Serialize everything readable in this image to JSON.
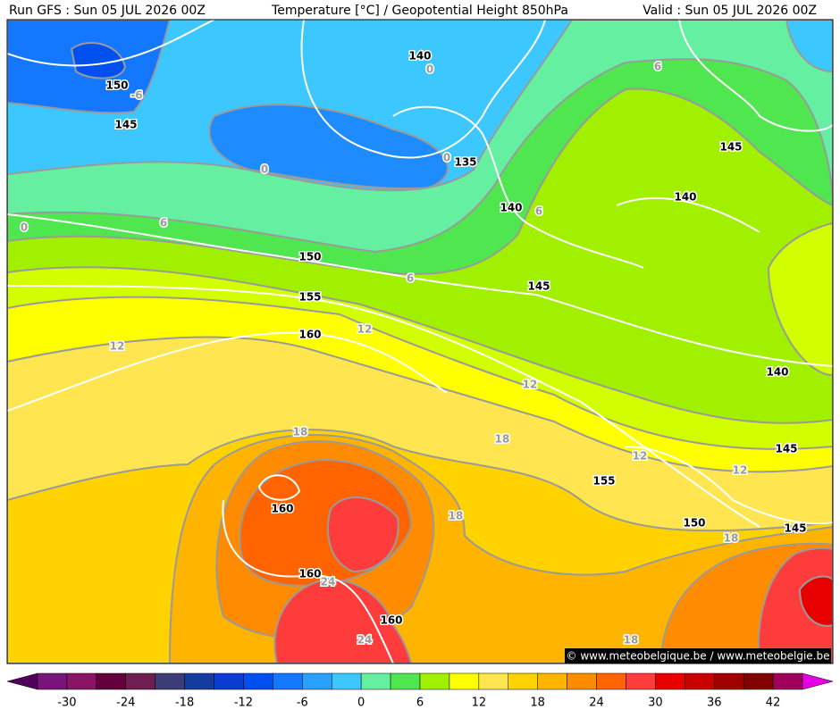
{
  "header": {
    "run": "Run GFS : Sun 05 JUL 2026 00Z",
    "title": "Temperature [°C] / Geopotential Height 850hPa",
    "valid": "Valid : Sun 05 JUL 2026 00Z"
  },
  "map": {
    "height_labels": [
      140,
      150,
      145,
      135,
      140,
      140,
      145,
      150,
      145,
      155,
      160,
      140,
      145,
      155,
      160,
      150,
      145,
      160,
      160
    ],
    "temperature_labels": [
      0,
      -6,
      0,
      0,
      6,
      6,
      6,
      0,
      6,
      12,
      12,
      12,
      18,
      18,
      12,
      12,
      18,
      18,
      24,
      24,
      18
    ]
  },
  "colorbar": {
    "colors": [
      "#50005a",
      "#78147a",
      "#8c1464",
      "#64003c",
      "#6e1e50",
      "#3c3c78",
      "#143ca0",
      "#0a3cd2",
      "#0050f0",
      "#1478ff",
      "#28a0ff",
      "#3cc8ff",
      "#64f0a0",
      "#50e650",
      "#a0f000",
      "#ffff00",
      "#ffe650",
      "#ffd200",
      "#ffb400",
      "#ff8c00",
      "#ff6400",
      "#ff3c3c",
      "#e60000",
      "#c80000",
      "#a00000",
      "#820000",
      "#a0005a",
      "#e600e6"
    ],
    "ticks": [
      -30,
      -24,
      -18,
      -12,
      -6,
      0,
      6,
      12,
      18,
      24,
      30,
      36,
      42
    ]
  },
  "attribution": "© www.meteobelgique.be / www.meteobelgie.be"
}
